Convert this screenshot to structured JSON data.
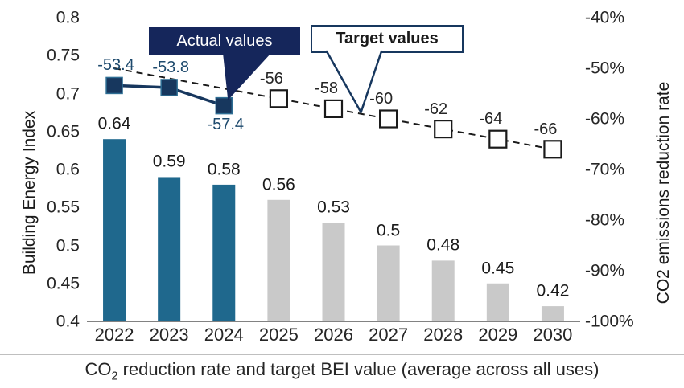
{
  "figure": {
    "caption": {
      "prefix": "CO",
      "sub": "2",
      "rest": " reduction rate and target BEI value (average across all uses)"
    }
  },
  "annotations": {
    "actual": {
      "label": "Actual values",
      "bg": "#15265B",
      "text_color": "#FFFFFF"
    },
    "target": {
      "label": "Target values",
      "border_color": "#17375E",
      "text_color": "#1A1A1A"
    }
  },
  "chart_data": {
    "type": "combo-bar-line",
    "title": "CO2 reduction rate and target BEI value (average across all uses)",
    "categories": [
      "2022",
      "2023",
      "2024",
      "2025",
      "2026",
      "2027",
      "2028",
      "2029",
      "2030"
    ],
    "bars": {
      "name": "Building Energy Index (BEI)",
      "axis": "left",
      "values": [
        0.64,
        0.59,
        0.58,
        0.56,
        0.53,
        0.5,
        0.48,
        0.45,
        0.42
      ],
      "labels": [
        "0.64",
        "0.59",
        "0.58",
        "0.56",
        "0.53",
        "0.5",
        "0.48",
        "0.45",
        "0.42"
      ],
      "actual_count": 3,
      "actual_color": "#1F688D",
      "target_color": "#C9C9C9"
    },
    "lines": [
      {
        "name": "Actual values",
        "axis": "right",
        "style": "solid",
        "marker": "filled-square",
        "color": "#17375E",
        "label_color": "#1E4A6D",
        "points": [
          {
            "x": "2022",
            "y": -53.4,
            "label": "-53.4",
            "label_side": "above",
            "marker": true
          },
          {
            "x": "2023",
            "y": -53.8,
            "label": "-53.8",
            "label_side": "above",
            "marker": true
          },
          {
            "x": "2024",
            "y": -57.4,
            "label": "-57.4",
            "label_side": "below",
            "marker": true
          }
        ]
      },
      {
        "name": "Target values",
        "axis": "right",
        "style": "dashed",
        "marker": "open-square",
        "color": "#1A1A1A",
        "label_color": "#262626",
        "points": [
          {
            "x": "2022",
            "y": -50
          },
          {
            "x": "2023",
            "y": -52
          },
          {
            "x": "2024",
            "y": -54
          },
          {
            "x": "2025",
            "y": -56,
            "label": "-56",
            "label_side": "above",
            "marker": true
          },
          {
            "x": "2026",
            "y": -58,
            "label": "-58",
            "label_side": "above",
            "marker": true
          },
          {
            "x": "2027",
            "y": -60,
            "label": "-60",
            "label_side": "above",
            "marker": true
          },
          {
            "x": "2028",
            "y": -62,
            "label": "-62",
            "label_side": "above",
            "marker": true
          },
          {
            "x": "2029",
            "y": -64,
            "label": "-64",
            "label_side": "above",
            "marker": true
          },
          {
            "x": "2030",
            "y": -66,
            "label": "-66",
            "label_side": "above",
            "marker": true
          }
        ]
      }
    ],
    "axes": {
      "left": {
        "label": "Building Energy Index",
        "min": 0.4,
        "max": 0.8,
        "ticks": [
          "0.8",
          "0.75",
          "0.7",
          "0.65",
          "0.6",
          "0.55",
          "0.5",
          "0.45",
          "0.4"
        ]
      },
      "right": {
        "label": "CO2 emissions reduction rate",
        "min": -100,
        "max": -40,
        "ticks": [
          "-40%",
          "-50%",
          "-60%",
          "-70%",
          "-80%",
          "-90%",
          "-100%"
        ]
      },
      "x": {
        "ticks": [
          "2022",
          "2023",
          "2024",
          "2025",
          "2026",
          "2027",
          "2028",
          "2029",
          "2030"
        ]
      }
    },
    "legend_position": "callouts-in-plot",
    "grid": false
  }
}
